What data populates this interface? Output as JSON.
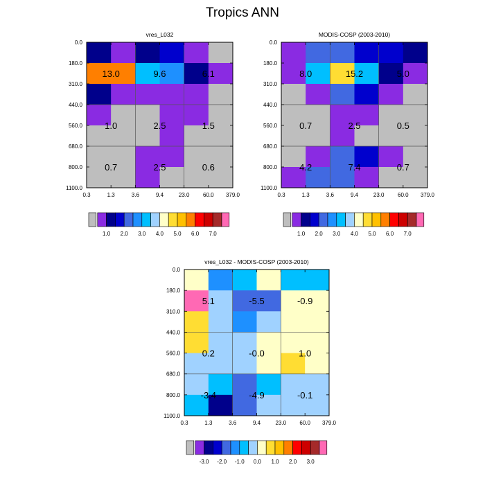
{
  "title": "Tropics ANN",
  "palettes": {
    "absolute": [
      "#bebebe",
      "#8a2be2",
      "#00008b",
      "#0000cd",
      "#4169e1",
      "#1e90ff",
      "#00bfff",
      "#a0d2ff",
      "#ffffc8",
      "#ffdd33",
      "#ffc000",
      "#ff7f00",
      "#ff0000",
      "#cd0000",
      "#a52a2a",
      "#ff69b4"
    ],
    "difference": [
      "#bebebe",
      "#8a2be2",
      "#00008b",
      "#0000cd",
      "#4169e1",
      "#1e90ff",
      "#00bfff",
      "#a0d2ff",
      "#ffffc8",
      "#ffdd33",
      "#ffc000",
      "#ff7f00",
      "#ff0000",
      "#cd0000",
      "#a52a2a",
      "#ff69b4"
    ]
  },
  "chart_data": [
    {
      "name": "vres-l032",
      "type": "heatmap",
      "title": "vres_L032",
      "palette": "absolute",
      "x_ticks": [
        "0.3",
        "1.3",
        "3.6",
        "9.4",
        "23.0",
        "60.0",
        "379.0"
      ],
      "y_ticks": [
        "0.0",
        "180.0",
        "310.0",
        "440.0",
        "560.0",
        "680.0",
        "800.0",
        "1100.0"
      ],
      "cells": [
        [
          2,
          1,
          2,
          3,
          1,
          0
        ],
        [
          11,
          11,
          6,
          5,
          2,
          1
        ],
        [
          2,
          1,
          1,
          1,
          1,
          0
        ],
        [
          1,
          0,
          0,
          1,
          1,
          0
        ],
        [
          0,
          0,
          0,
          1,
          0,
          0
        ],
        [
          0,
          0,
          1,
          1,
          0,
          0
        ],
        [
          0,
          0,
          1,
          0,
          0,
          0
        ]
      ],
      "block_labels": [
        [
          "13.0",
          "9.6",
          "6.1"
        ],
        [
          "1.0",
          "2.5",
          "1.5"
        ],
        [
          "0.7",
          "2.5",
          "0.6"
        ]
      ],
      "colorbar_labels": [
        "1.0",
        "2.0",
        "3.0",
        "4.0",
        "5.0",
        "6.0",
        "7.0"
      ]
    },
    {
      "name": "modis-cosp",
      "type": "heatmap",
      "title": "MODIS-COSP (2003-2010)",
      "palette": "absolute",
      "x_ticks": [
        "0.3",
        "1.3",
        "3.6",
        "9.4",
        "23.0",
        "60.0",
        "379.0"
      ],
      "y_ticks": [
        "0.0",
        "180.0",
        "310.0",
        "440.0",
        "560.0",
        "680.0",
        "800.0",
        "1100.0"
      ],
      "cells": [
        [
          1,
          4,
          4,
          3,
          3,
          2
        ],
        [
          1,
          6,
          9,
          6,
          2,
          1
        ],
        [
          0,
          1,
          4,
          3,
          1,
          0
        ],
        [
          0,
          0,
          1,
          1,
          0,
          0
        ],
        [
          0,
          0,
          1,
          0,
          0,
          0
        ],
        [
          0,
          1,
          4,
          3,
          1,
          0
        ],
        [
          1,
          4,
          4,
          1,
          0,
          0
        ]
      ],
      "block_labels": [
        [
          "8.0",
          "15.2",
          "5.0"
        ],
        [
          "0.7",
          "2.5",
          "0.5"
        ],
        [
          "4.2",
          "7.4",
          "0.7"
        ]
      ],
      "colorbar_labels": [
        "1.0",
        "2.0",
        "3.0",
        "4.0",
        "5.0",
        "6.0",
        "7.0"
      ]
    },
    {
      "name": "difference",
      "type": "heatmap",
      "title": "vres_L032 - MODIS-COSP (2003-2010)",
      "palette": "difference",
      "x_ticks": [
        "0.3",
        "1.3",
        "3.6",
        "9.4",
        "23.0",
        "60.0",
        "379.0"
      ],
      "y_ticks": [
        "0.0",
        "180.0",
        "310.0",
        "440.0",
        "560.0",
        "680.0",
        "800.0",
        "1100.0"
      ],
      "cells": [
        [
          8,
          5,
          6,
          8,
          6,
          6
        ],
        [
          15,
          7,
          4,
          4,
          8,
          8
        ],
        [
          9,
          7,
          5,
          7,
          8,
          8
        ],
        [
          9,
          7,
          7,
          8,
          8,
          8
        ],
        [
          7,
          7,
          7,
          8,
          9,
          8
        ],
        [
          7,
          6,
          4,
          6,
          7,
          7
        ],
        [
          6,
          2,
          4,
          7,
          7,
          7
        ]
      ],
      "block_labels": [
        [
          "5.1",
          "-5.5",
          "-0.9"
        ],
        [
          "0.2",
          "-0.0",
          "1.0"
        ],
        [
          "-3.4",
          "-4.9",
          "-0.1"
        ]
      ],
      "colorbar_labels": [
        "-3.0",
        "-2.0",
        "-1.0",
        "0.0",
        "1.0",
        "2.0",
        "3.0"
      ]
    }
  ]
}
